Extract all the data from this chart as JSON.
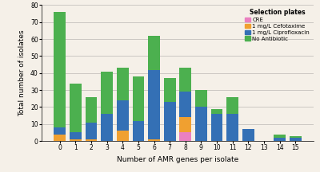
{
  "categories": [
    0,
    1,
    2,
    3,
    4,
    5,
    6,
    7,
    8,
    9,
    10,
    11,
    12,
    13,
    14,
    15
  ],
  "no_antibiotic": [
    68,
    29,
    15,
    25,
    19,
    26,
    20,
    14,
    14,
    10,
    3,
    10,
    0,
    0,
    2,
    1
  ],
  "ciprofloxacin": [
    4,
    4,
    10,
    16,
    18,
    12,
    41,
    23,
    15,
    20,
    16,
    16,
    7,
    0,
    2,
    2
  ],
  "cefotaxime": [
    4,
    1,
    1,
    0,
    6,
    0,
    1,
    0,
    9,
    0,
    0,
    0,
    0,
    0,
    0,
    0
  ],
  "cre": [
    0,
    0,
    0,
    0,
    0,
    0,
    0,
    0,
    5,
    0,
    0,
    0,
    0,
    0,
    0,
    0
  ],
  "color_no_antibiotic": "#4cb04f",
  "color_ciprofloxacin": "#3470b5",
  "color_cefotaxime": "#f0a030",
  "color_cre": "#ea80c0",
  "bg_color": "#f5f0e8",
  "xlabel": "Number of AMR genes per isolate",
  "ylabel": "Total number of isolates",
  "ylim": [
    0,
    80
  ],
  "yticks": [
    0,
    10,
    20,
    30,
    40,
    50,
    60,
    70,
    80
  ],
  "legend_title": "Selection plates",
  "legend_labels": [
    "CRE",
    "1 mg/L Cefotaxime",
    "1 mg/L Ciprofloxacin",
    "No Antibiotic"
  ]
}
